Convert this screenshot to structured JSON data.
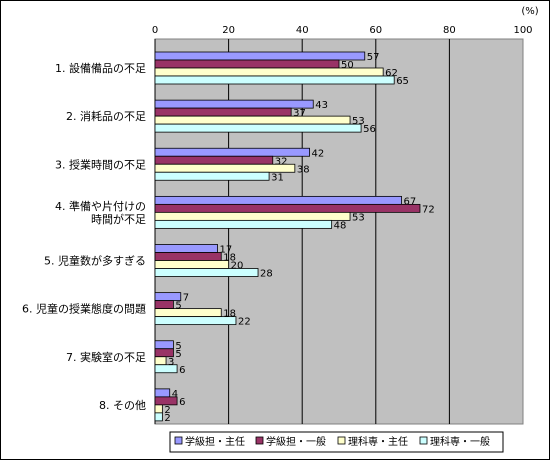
{
  "chart_data": {
    "type": "bar",
    "orientation": "horizontal",
    "unit_label": "(%)",
    "xlim": [
      0,
      100
    ],
    "x_ticks": [
      0,
      20,
      40,
      60,
      80,
      100
    ],
    "grid": true,
    "legend_position": "bottom",
    "categories": [
      [
        "1. 設備備品の不足"
      ],
      [
        "2. 消耗品の不足"
      ],
      [
        "3. 授業時間の不足"
      ],
      [
        "4. 準備や片付けの",
        "時間が不足"
      ],
      [
        "5. 児童数が多すぎる"
      ],
      [
        "6. 児童の授業態度の問題"
      ],
      [
        "7. 実験室の不足"
      ],
      [
        "8. その他"
      ]
    ],
    "series": [
      {
        "name": "学級担・主任",
        "color": "#9999ff",
        "values": [
          57,
          43,
          42,
          67,
          17,
          7,
          5,
          4
        ]
      },
      {
        "name": "学級担・一般",
        "color": "#993366",
        "values": [
          50,
          37,
          32,
          72,
          18,
          5,
          5,
          6
        ]
      },
      {
        "name": "理科専・主任",
        "color": "#ffffcc",
        "values": [
          62,
          53,
          38,
          53,
          20,
          18,
          3,
          2
        ]
      },
      {
        "name": "理科専・一般",
        "color": "#ccffff",
        "values": [
          65,
          56,
          31,
          48,
          28,
          22,
          6,
          2
        ]
      }
    ]
  }
}
